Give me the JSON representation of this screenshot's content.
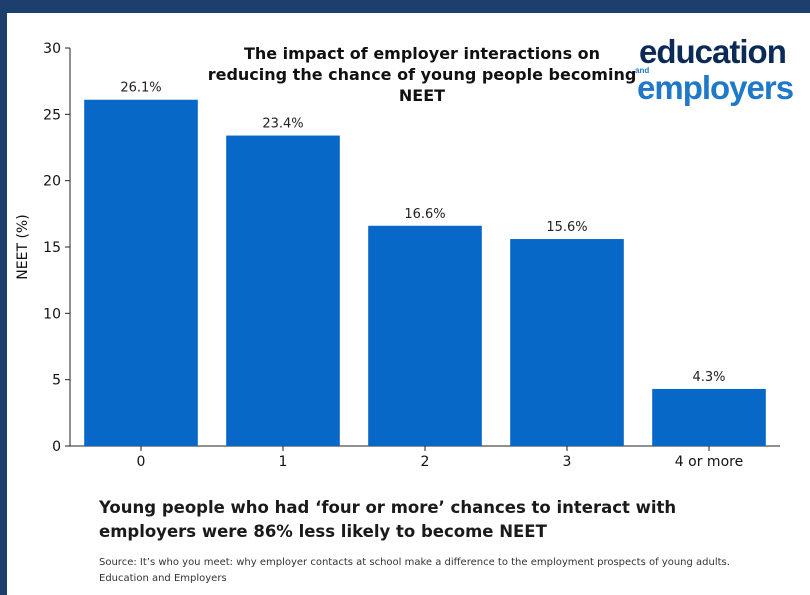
{
  "logo": {
    "line1": "education",
    "and": "and",
    "line2": "employers"
  },
  "colors": {
    "bar": "#0868c8",
    "frame": "#1d3f6e"
  },
  "caption": "Young people who had ‘four or more’ chances to interact with employers were 86% less likely to become NEET",
  "source": "Source: It’s who you meet: why employer contacts at school make a difference to the employment prospects of young adults. Education and Employers",
  "chart_data": {
    "type": "bar",
    "title": "The impact of employer interactions on reducing the chance of young people becoming NEET",
    "xlabel": "",
    "ylabel": "NEET (%)",
    "categories": [
      "0",
      "1",
      "2",
      "3",
      "4 or more"
    ],
    "values": [
      26.1,
      23.4,
      16.6,
      15.6,
      4.3
    ],
    "data_labels": [
      "26.1%",
      "23.4%",
      "16.6%",
      "15.6%",
      "4.3%"
    ],
    "ylim": [
      0,
      30
    ],
    "yticks": [
      0,
      5,
      10,
      15,
      20,
      25,
      30
    ],
    "grid": false,
    "legend": "none"
  }
}
